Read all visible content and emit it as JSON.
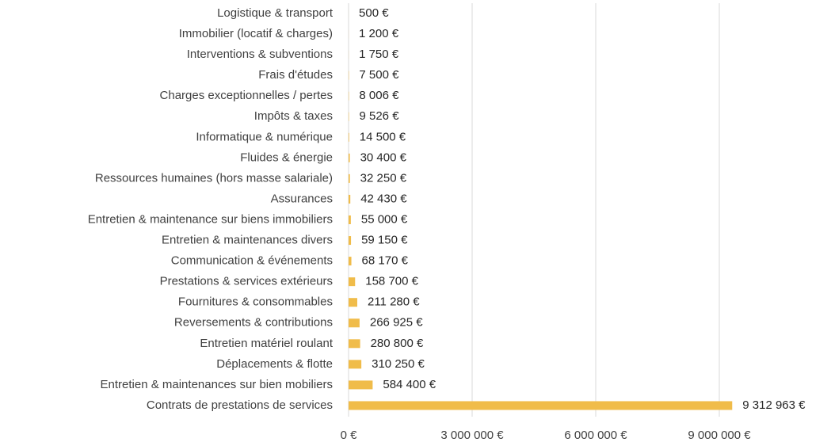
{
  "chart_data": {
    "type": "bar",
    "orientation": "horizontal",
    "categories": [
      "Logistique & transport",
      "Immobilier (locatif & charges)",
      "Interventions & subventions",
      "Frais d'études",
      "Charges exceptionnelles / pertes",
      "Impôts & taxes",
      "Informatique & numérique",
      "Fluides & énergie",
      "Ressources humaines (hors masse salariale)",
      "Assurances",
      "Entretien & maintenance sur biens immobiliers",
      "Entretien & maintenances divers",
      "Communication & événements",
      "Prestations & services extérieurs",
      "Fournitures & consommables",
      "Reversements & contributions",
      "Entretien matériel roulant",
      "Déplacements & flotte",
      "Entretien & maintenances sur bien mobiliers",
      "Contrats de prestations de services"
    ],
    "values": [
      500,
      1200,
      1750,
      7500,
      8006,
      9526,
      14500,
      30400,
      32250,
      42430,
      55000,
      59150,
      68170,
      158700,
      211280,
      266925,
      280800,
      310250,
      584400,
      9312963
    ],
    "value_labels": [
      "500 €",
      "1 200 €",
      "1 750 €",
      "7 500 €",
      "8 006 €",
      "9 526 €",
      "14 500 €",
      "30 400 €",
      "32 250 €",
      "42 430 €",
      "55 000 €",
      "59 150 €",
      "68 170 €",
      "158 700 €",
      "211 280 €",
      "266 925 €",
      "280 800 €",
      "310 250 €",
      "584 400 €",
      "9 312 963 €"
    ],
    "color": "#f0bc4a",
    "xlim": [
      0,
      10000000
    ],
    "xticks": [
      {
        "value": 0,
        "label": "0 €"
      },
      {
        "value": 3000000,
        "label": "3 000 000 €"
      },
      {
        "value": 6000000,
        "label": "6 000 000 €"
      },
      {
        "value": 9000000,
        "label": "9 000 000 €"
      }
    ],
    "grid": true
  }
}
